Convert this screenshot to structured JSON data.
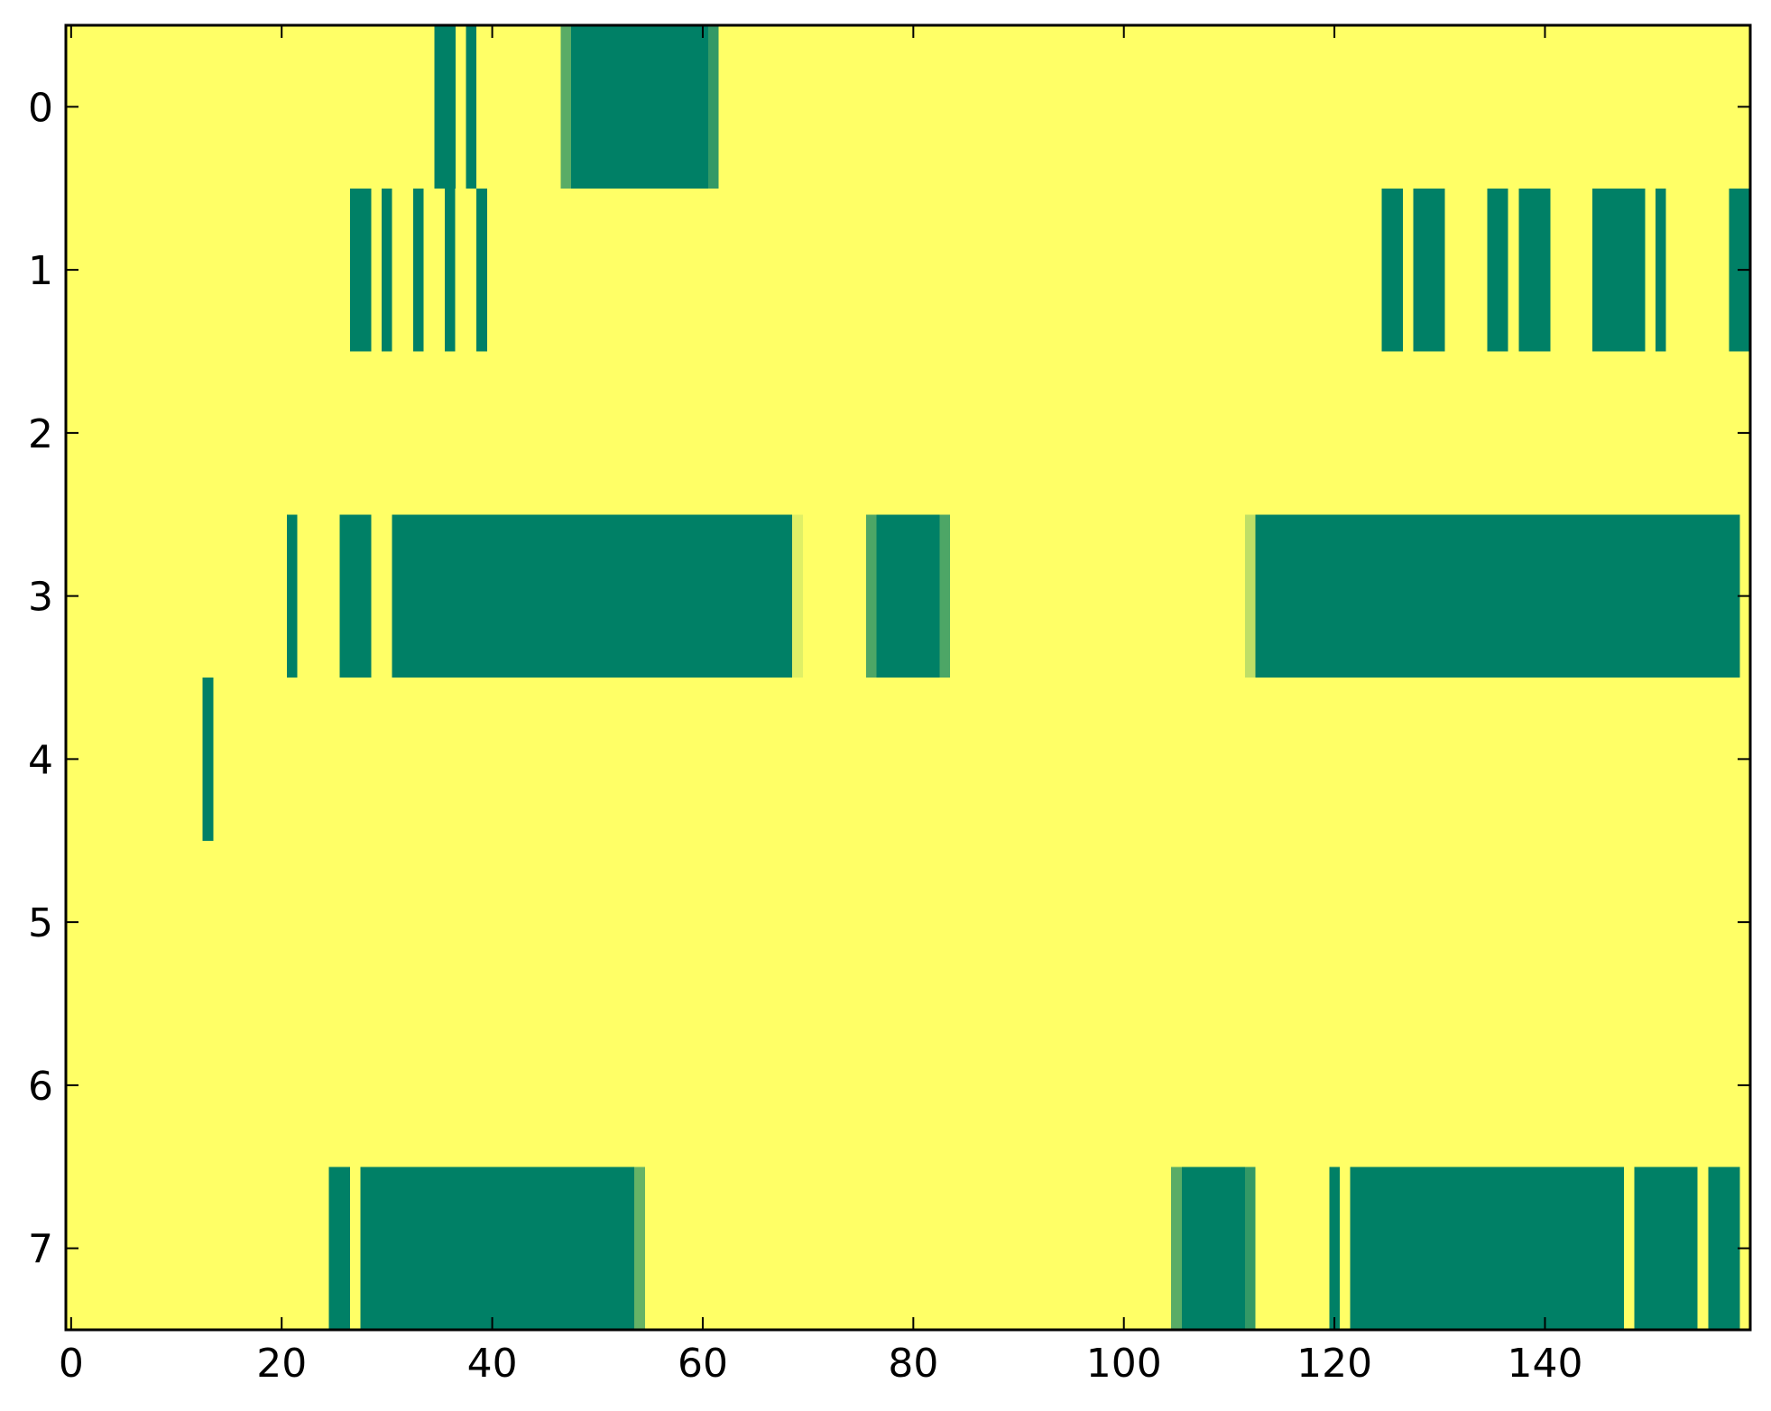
{
  "chart_data": {
    "type": "heatmap",
    "title": "",
    "xlabel": "",
    "ylabel": "",
    "xlim": [
      -0.5,
      159.5
    ],
    "ylim": [
      7.5,
      -0.5
    ],
    "x_ticks": [
      0,
      20,
      40,
      60,
      80,
      100,
      120,
      140
    ],
    "x_tick_labels": [
      "0",
      "20",
      "40",
      "60",
      "80",
      "100",
      "120",
      "140"
    ],
    "y_ticks": [
      0,
      1,
      2,
      3,
      4,
      5,
      6,
      7
    ],
    "y_tick_labels": [
      "0",
      "1",
      "2",
      "3",
      "4",
      "5",
      "6",
      "7"
    ],
    "n_rows": 8,
    "n_cols": 160,
    "grid": false,
    "legend": "none",
    "colormap": "summer_r",
    "colors": {
      "low": "#ffff66",
      "high": "#008066",
      "background": "#ffff66"
    },
    "background_value": 0,
    "segments": [
      {
        "row": 0,
        "x0": 35,
        "x1": 36,
        "value": 1.0
      },
      {
        "row": 0,
        "x0": 38,
        "x1": 38,
        "value": 1.0
      },
      {
        "row": 0,
        "x0": 47,
        "x1": 47,
        "value": 0.65
      },
      {
        "row": 0,
        "x0": 48,
        "x1": 60,
        "value": 1.0
      },
      {
        "row": 0,
        "x0": 61,
        "x1": 61,
        "value": 0.8
      },
      {
        "row": 1,
        "x0": 27,
        "x1": 28,
        "value": 1.0
      },
      {
        "row": 1,
        "x0": 30,
        "x1": 30,
        "value": 1.0
      },
      {
        "row": 1,
        "x0": 33,
        "x1": 33,
        "value": 1.0
      },
      {
        "row": 1,
        "x0": 36,
        "x1": 36,
        "value": 1.0
      },
      {
        "row": 1,
        "x0": 39,
        "x1": 39,
        "value": 1.0
      },
      {
        "row": 1,
        "x0": 125,
        "x1": 126,
        "value": 1.0
      },
      {
        "row": 1,
        "x0": 128,
        "x1": 130,
        "value": 1.0
      },
      {
        "row": 1,
        "x0": 135,
        "x1": 136,
        "value": 1.0
      },
      {
        "row": 1,
        "x0": 138,
        "x1": 140,
        "value": 1.0
      },
      {
        "row": 1,
        "x0": 145,
        "x1": 149,
        "value": 1.0
      },
      {
        "row": 1,
        "x0": 151,
        "x1": 151,
        "value": 1.0
      },
      {
        "row": 1,
        "x0": 158,
        "x1": 159,
        "value": 1.0
      },
      {
        "row": 3,
        "x0": 21,
        "x1": 21,
        "value": 1.0
      },
      {
        "row": 3,
        "x0": 26,
        "x1": 28,
        "value": 1.0
      },
      {
        "row": 3,
        "x0": 31,
        "x1": 68,
        "value": 1.0
      },
      {
        "row": 3,
        "x0": 69,
        "x1": 69,
        "value": 0.12
      },
      {
        "row": 3,
        "x0": 76,
        "x1": 76,
        "value": 0.7
      },
      {
        "row": 3,
        "x0": 77,
        "x1": 82,
        "value": 1.0
      },
      {
        "row": 3,
        "x0": 83,
        "x1": 83,
        "value": 0.7
      },
      {
        "row": 3,
        "x0": 112,
        "x1": 112,
        "value": 0.25
      },
      {
        "row": 3,
        "x0": 113,
        "x1": 158,
        "value": 1.0
      },
      {
        "row": 4,
        "x0": 13,
        "x1": 13,
        "value": 1.0
      },
      {
        "row": 7,
        "x0": 25,
        "x1": 26,
        "value": 1.0
      },
      {
        "row": 7,
        "x0": 28,
        "x1": 53,
        "value": 1.0
      },
      {
        "row": 7,
        "x0": 54,
        "x1": 54,
        "value": 0.6
      },
      {
        "row": 7,
        "x0": 105,
        "x1": 105,
        "value": 0.65
      },
      {
        "row": 7,
        "x0": 106,
        "x1": 111,
        "value": 1.0
      },
      {
        "row": 7,
        "x0": 112,
        "x1": 112,
        "value": 0.8
      },
      {
        "row": 7,
        "x0": 120,
        "x1": 120,
        "value": 1.0
      },
      {
        "row": 7,
        "x0": 122,
        "x1": 147,
        "value": 1.0
      },
      {
        "row": 7,
        "x0": 149,
        "x1": 154,
        "value": 1.0
      },
      {
        "row": 7,
        "x0": 156,
        "x1": 158,
        "value": 1.0
      }
    ]
  }
}
